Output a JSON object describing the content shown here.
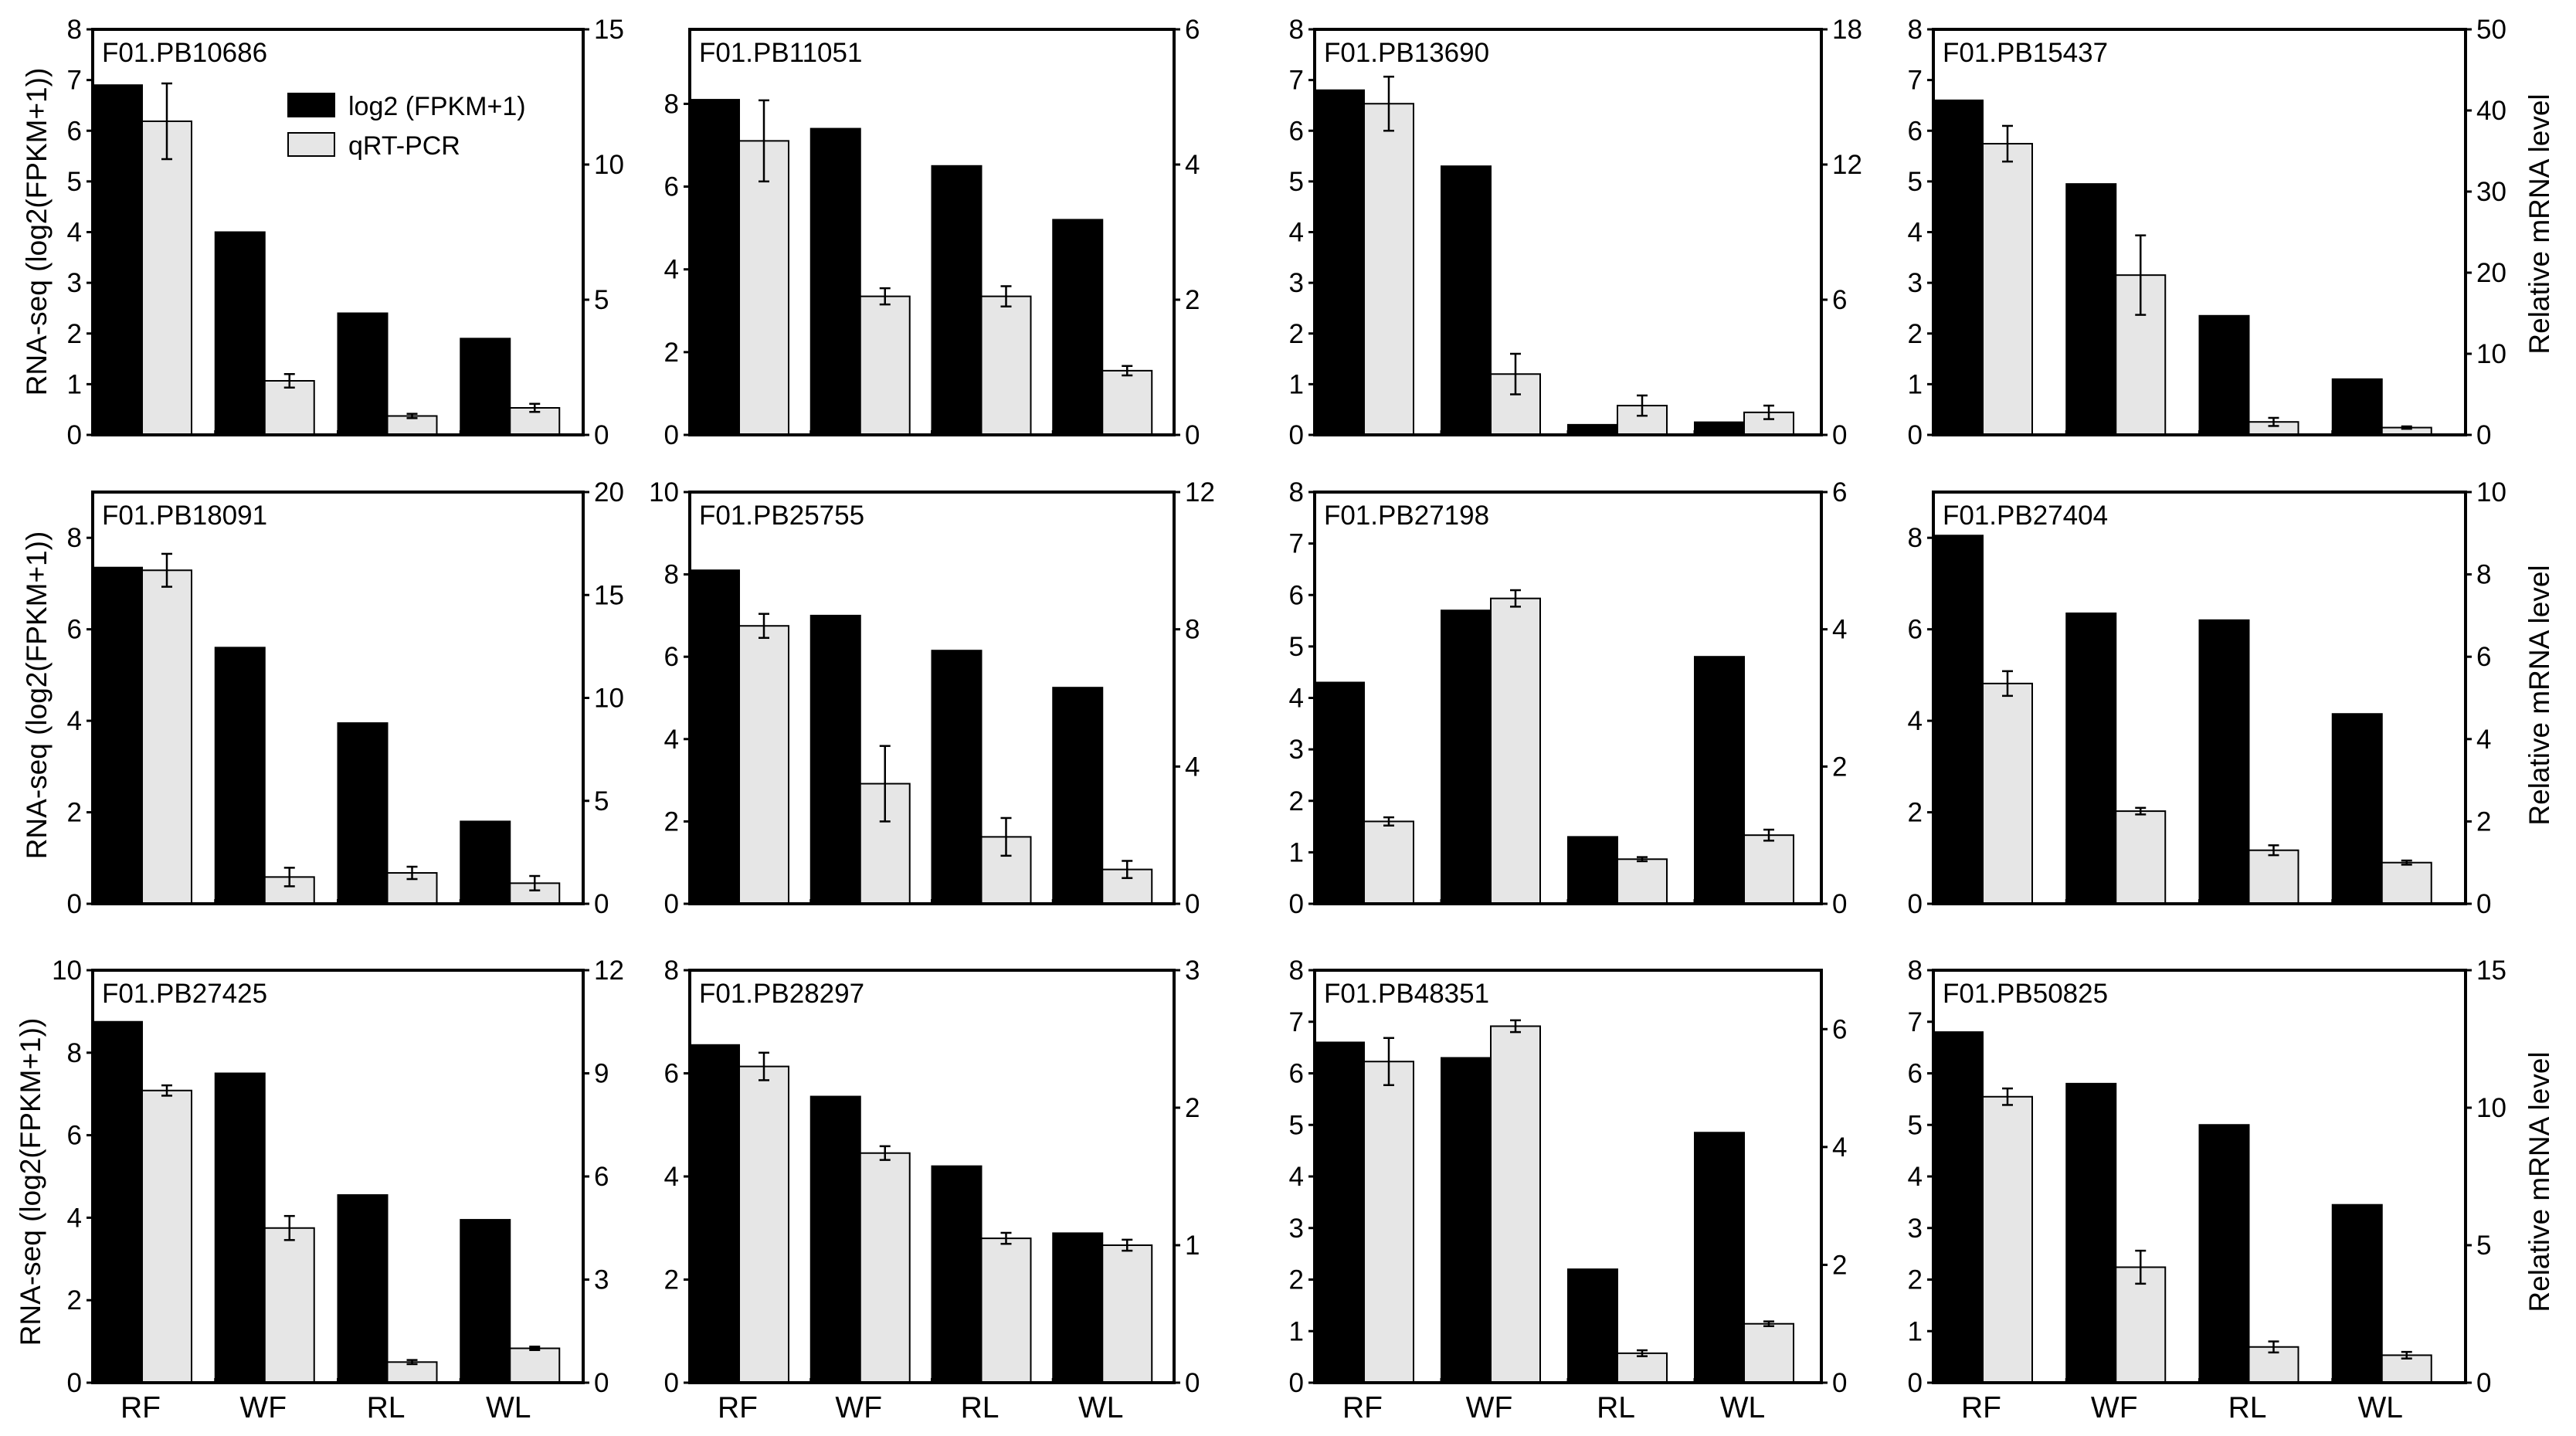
{
  "figure": {
    "left_axis_label": "RNA-seq (log2(FPKM+1))",
    "right_axis_label": "Relative mRNA level",
    "legend": [
      {
        "label": "log2 (FPKM+1)",
        "color": "#000000"
      },
      {
        "label": "qRT-PCR",
        "color": "#e6e6e6"
      }
    ]
  },
  "chart_data": [
    {
      "type": "bar",
      "title": "F01.PB10686",
      "categories": [
        "RF",
        "WF",
        "RL",
        "WL"
      ],
      "y1lim": [
        0,
        8
      ],
      "y1ticks": [
        0,
        1,
        2,
        3,
        4,
        5,
        6,
        7,
        8
      ],
      "y2lim": [
        0,
        15
      ],
      "y2ticks": [
        0,
        5,
        10,
        15
      ],
      "series": [
        {
          "name": "log2 (FPKM+1)",
          "axis": "left",
          "values": [
            6.9,
            4.0,
            2.4,
            1.9
          ]
        },
        {
          "name": "qRT-PCR",
          "axis": "right",
          "values": [
            11.6,
            2.0,
            0.7,
            1.0
          ],
          "errors": [
            1.4,
            0.25,
            0.08,
            0.15
          ]
        }
      ]
    },
    {
      "type": "bar",
      "title": "F01.PB11051",
      "categories": [
        "RF",
        "WF",
        "RL",
        "WL"
      ],
      "y1lim": [
        0,
        9.8
      ],
      "y1ticks": [
        0,
        2,
        4,
        6,
        8
      ],
      "y2lim": [
        0,
        6
      ],
      "y2ticks": [
        0,
        2,
        4,
        6
      ],
      "series": [
        {
          "name": "log2 (FPKM+1)",
          "axis": "left",
          "values": [
            8.1,
            7.4,
            6.5,
            5.2
          ]
        },
        {
          "name": "qRT-PCR",
          "axis": "right",
          "values": [
            4.35,
            2.05,
            2.05,
            0.95
          ],
          "errors": [
            0.6,
            0.12,
            0.15,
            0.07
          ]
        }
      ]
    },
    {
      "type": "bar",
      "title": "F01.PB13690",
      "categories": [
        "RF",
        "WF",
        "RL",
        "WL"
      ],
      "y1lim": [
        0,
        8
      ],
      "y1ticks": [
        0,
        1,
        2,
        3,
        4,
        5,
        6,
        7,
        8
      ],
      "y2lim": [
        0,
        18
      ],
      "y2ticks": [
        0,
        6,
        12,
        18
      ],
      "series": [
        {
          "name": "log2 (FPKM+1)",
          "axis": "left",
          "values": [
            6.8,
            5.3,
            0.2,
            0.25
          ]
        },
        {
          "name": "qRT-PCR",
          "axis": "right",
          "values": [
            14.7,
            2.7,
            1.3,
            1.0
          ],
          "errors": [
            1.2,
            0.9,
            0.45,
            0.3
          ]
        }
      ]
    },
    {
      "type": "bar",
      "title": "F01.PB15437",
      "categories": [
        "RF",
        "WF",
        "RL",
        "WL"
      ],
      "y1lim": [
        0,
        8
      ],
      "y1ticks": [
        0,
        1,
        2,
        3,
        4,
        5,
        6,
        7,
        8
      ],
      "y2lim": [
        0,
        50
      ],
      "y2ticks": [
        0,
        10,
        20,
        30,
        40,
        50
      ],
      "series": [
        {
          "name": "log2 (FPKM+1)",
          "axis": "left",
          "values": [
            6.6,
            4.95,
            2.35,
            1.1
          ]
        },
        {
          "name": "qRT-PCR",
          "axis": "right",
          "values": [
            35.9,
            19.7,
            1.6,
            0.9
          ],
          "errors": [
            2.2,
            4.9,
            0.5,
            0.15
          ]
        }
      ]
    },
    {
      "type": "bar",
      "title": "F01.PB18091",
      "categories": [
        "RF",
        "WF",
        "RL",
        "WL"
      ],
      "y1lim": [
        0,
        9
      ],
      "y1ticks": [
        0,
        2,
        4,
        6,
        8
      ],
      "y2lim": [
        0,
        20
      ],
      "y2ticks": [
        0,
        5,
        10,
        15,
        20
      ],
      "series": [
        {
          "name": "log2 (FPKM+1)",
          "axis": "left",
          "values": [
            7.35,
            5.6,
            3.95,
            1.8
          ]
        },
        {
          "name": "qRT-PCR",
          "axis": "right",
          "values": [
            16.2,
            1.3,
            1.5,
            1.0
          ],
          "errors": [
            0.8,
            0.45,
            0.3,
            0.35
          ]
        }
      ]
    },
    {
      "type": "bar",
      "title": "F01.PB25755",
      "categories": [
        "RF",
        "WF",
        "RL",
        "WL"
      ],
      "y1lim": [
        0,
        10
      ],
      "y1ticks": [
        0,
        2,
        4,
        6,
        8,
        10
      ],
      "y2lim": [
        0,
        12
      ],
      "y2ticks": [
        0,
        4,
        8,
        12
      ],
      "series": [
        {
          "name": "log2 (FPKM+1)",
          "axis": "left",
          "values": [
            8.1,
            7.0,
            6.15,
            5.25
          ]
        },
        {
          "name": "qRT-PCR",
          "axis": "right",
          "values": [
            8.1,
            3.5,
            1.95,
            1.0
          ],
          "errors": [
            0.35,
            1.1,
            0.55,
            0.25
          ]
        }
      ]
    },
    {
      "type": "bar",
      "title": "F01.PB27198",
      "categories": [
        "RF",
        "WF",
        "RL",
        "WL"
      ],
      "y1lim": [
        0,
        8
      ],
      "y1ticks": [
        0,
        1,
        2,
        3,
        4,
        5,
        6,
        7,
        8
      ],
      "y2lim": [
        0,
        6
      ],
      "y2ticks": [
        0,
        2,
        4,
        6
      ],
      "series": [
        {
          "name": "log2 (FPKM+1)",
          "axis": "left",
          "values": [
            4.3,
            5.7,
            1.3,
            4.8
          ]
        },
        {
          "name": "qRT-PCR",
          "axis": "right",
          "values": [
            1.2,
            4.45,
            0.65,
            1.0
          ],
          "errors": [
            0.06,
            0.12,
            0.03,
            0.08
          ]
        }
      ]
    },
    {
      "type": "bar",
      "title": "F01.PB27404",
      "categories": [
        "RF",
        "WF",
        "RL",
        "WL"
      ],
      "y1lim": [
        0,
        9
      ],
      "y1ticks": [
        0,
        2,
        4,
        6,
        8
      ],
      "y2lim": [
        0,
        10
      ],
      "y2ticks": [
        0,
        2,
        4,
        6,
        8,
        10
      ],
      "series": [
        {
          "name": "log2 (FPKM+1)",
          "axis": "left",
          "values": [
            8.05,
            6.35,
            6.2,
            4.15
          ]
        },
        {
          "name": "qRT-PCR",
          "axis": "right",
          "values": [
            5.35,
            2.25,
            1.3,
            1.0
          ],
          "errors": [
            0.3,
            0.08,
            0.12,
            0.05
          ]
        }
      ]
    },
    {
      "type": "bar",
      "title": "F01.PB27425",
      "categories": [
        "RF",
        "WF",
        "RL",
        "WL"
      ],
      "y1lim": [
        0,
        10
      ],
      "y1ticks": [
        0,
        2,
        4,
        6,
        8,
        10
      ],
      "y2lim": [
        0,
        12
      ],
      "y2ticks": [
        0,
        3,
        6,
        9,
        12
      ],
      "series": [
        {
          "name": "log2 (FPKM+1)",
          "axis": "left",
          "values": [
            8.75,
            7.5,
            4.55,
            3.95
          ]
        },
        {
          "name": "qRT-PCR",
          "axis": "right",
          "values": [
            8.5,
            4.5,
            0.6,
            1.0
          ],
          "errors": [
            0.15,
            0.35,
            0.06,
            0.05
          ]
        }
      ]
    },
    {
      "type": "bar",
      "title": "F01.PB28297",
      "categories": [
        "RF",
        "WF",
        "RL",
        "WL"
      ],
      "y1lim": [
        0,
        8
      ],
      "y1ticks": [
        0,
        2,
        4,
        6,
        8
      ],
      "y2lim": [
        0,
        3
      ],
      "y2ticks": [
        0,
        1,
        2,
        3
      ],
      "series": [
        {
          "name": "log2 (FPKM+1)",
          "axis": "left",
          "values": [
            6.55,
            5.55,
            4.2,
            2.9
          ]
        },
        {
          "name": "qRT-PCR",
          "axis": "right",
          "values": [
            2.3,
            1.67,
            1.05,
            1.0
          ],
          "errors": [
            0.1,
            0.05,
            0.04,
            0.04
          ]
        }
      ]
    },
    {
      "type": "bar",
      "title": "F01.PB48351",
      "categories": [
        "RF",
        "WF",
        "RL",
        "WL"
      ],
      "y1lim": [
        0,
        8
      ],
      "y1ticks": [
        0,
        1,
        2,
        3,
        4,
        5,
        6,
        7,
        8
      ],
      "y2lim": [
        0,
        7
      ],
      "y2ticks": [
        0,
        2,
        4,
        6
      ],
      "series": [
        {
          "name": "log2 (FPKM+1)",
          "axis": "left",
          "values": [
            6.6,
            6.3,
            2.2,
            4.85
          ]
        },
        {
          "name": "qRT-PCR",
          "axis": "right",
          "values": [
            5.45,
            6.05,
            0.5,
            1.0
          ],
          "errors": [
            0.4,
            0.1,
            0.05,
            0.04
          ]
        }
      ]
    },
    {
      "type": "bar",
      "title": "F01.PB50825",
      "categories": [
        "RF",
        "WF",
        "RL",
        "WL"
      ],
      "y1lim": [
        0,
        8
      ],
      "y1ticks": [
        0,
        1,
        2,
        3,
        4,
        5,
        6,
        7,
        8
      ],
      "y2lim": [
        0,
        15
      ],
      "y2ticks": [
        0,
        5,
        10,
        15
      ],
      "series": [
        {
          "name": "log2 (FPKM+1)",
          "axis": "left",
          "values": [
            6.8,
            5.8,
            5.0,
            3.45
          ]
        },
        {
          "name": "qRT-PCR",
          "axis": "right",
          "values": [
            10.4,
            4.2,
            1.3,
            1.0
          ],
          "errors": [
            0.3,
            0.6,
            0.2,
            0.12
          ]
        }
      ]
    }
  ]
}
